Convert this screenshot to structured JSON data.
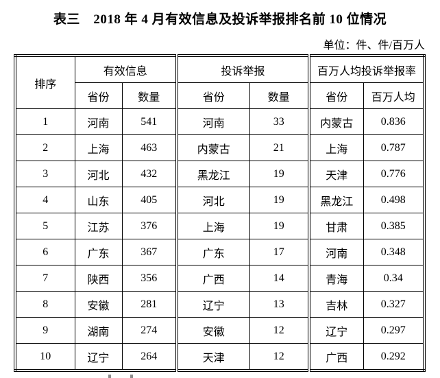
{
  "page": {
    "title": "表三　2018 年 4 月有效信息及投诉举报排名前 10 位情况",
    "unit_note": "单位：件、件/百万人"
  },
  "table": {
    "rank_header": "排序",
    "groups": [
      {
        "label": "有效信息",
        "col1": "省份",
        "col2": "数量"
      },
      {
        "label": "投诉举报",
        "col1": "省份",
        "col2": "数量"
      },
      {
        "label": "百万人均投诉举报率",
        "col1": "省份",
        "col2": "百万人均"
      }
    ],
    "rows": [
      {
        "rank": "1",
        "info_province": "河南",
        "info_count": "541",
        "complaint_province": "河南",
        "complaint_count": "33",
        "rate_province": "内蒙古",
        "rate_value": "0.836"
      },
      {
        "rank": "2",
        "info_province": "上海",
        "info_count": "463",
        "complaint_province": "内蒙古",
        "complaint_count": "21",
        "rate_province": "上海",
        "rate_value": "0.787"
      },
      {
        "rank": "3",
        "info_province": "河北",
        "info_count": "432",
        "complaint_province": "黑龙江",
        "complaint_count": "19",
        "rate_province": "天津",
        "rate_value": "0.776"
      },
      {
        "rank": "4",
        "info_province": "山东",
        "info_count": "405",
        "complaint_province": "河北",
        "complaint_count": "19",
        "rate_province": "黑龙江",
        "rate_value": "0.498"
      },
      {
        "rank": "5",
        "info_province": "江苏",
        "info_count": "376",
        "complaint_province": "上海",
        "complaint_count": "19",
        "rate_province": "甘肃",
        "rate_value": "0.385"
      },
      {
        "rank": "6",
        "info_province": "广东",
        "info_count": "367",
        "complaint_province": "广东",
        "complaint_count": "17",
        "rate_province": "河南",
        "rate_value": "0.348"
      },
      {
        "rank": "7",
        "info_province": "陕西",
        "info_count": "356",
        "complaint_province": "广西",
        "complaint_count": "14",
        "rate_province": "青海",
        "rate_value": "0.34"
      },
      {
        "rank": "8",
        "info_province": "安徽",
        "info_count": "281",
        "complaint_province": "辽宁",
        "complaint_count": "13",
        "rate_province": "吉林",
        "rate_value": "0.327"
      },
      {
        "rank": "9",
        "info_province": "湖南",
        "info_count": "274",
        "complaint_province": "安徽",
        "complaint_count": "12",
        "rate_province": "辽宁",
        "rate_value": "0.297"
      },
      {
        "rank": "10",
        "info_province": "辽宁",
        "info_count": "264",
        "complaint_province": "天津",
        "complaint_count": "12",
        "rate_province": "广西",
        "rate_value": "0.292"
      }
    ]
  }
}
